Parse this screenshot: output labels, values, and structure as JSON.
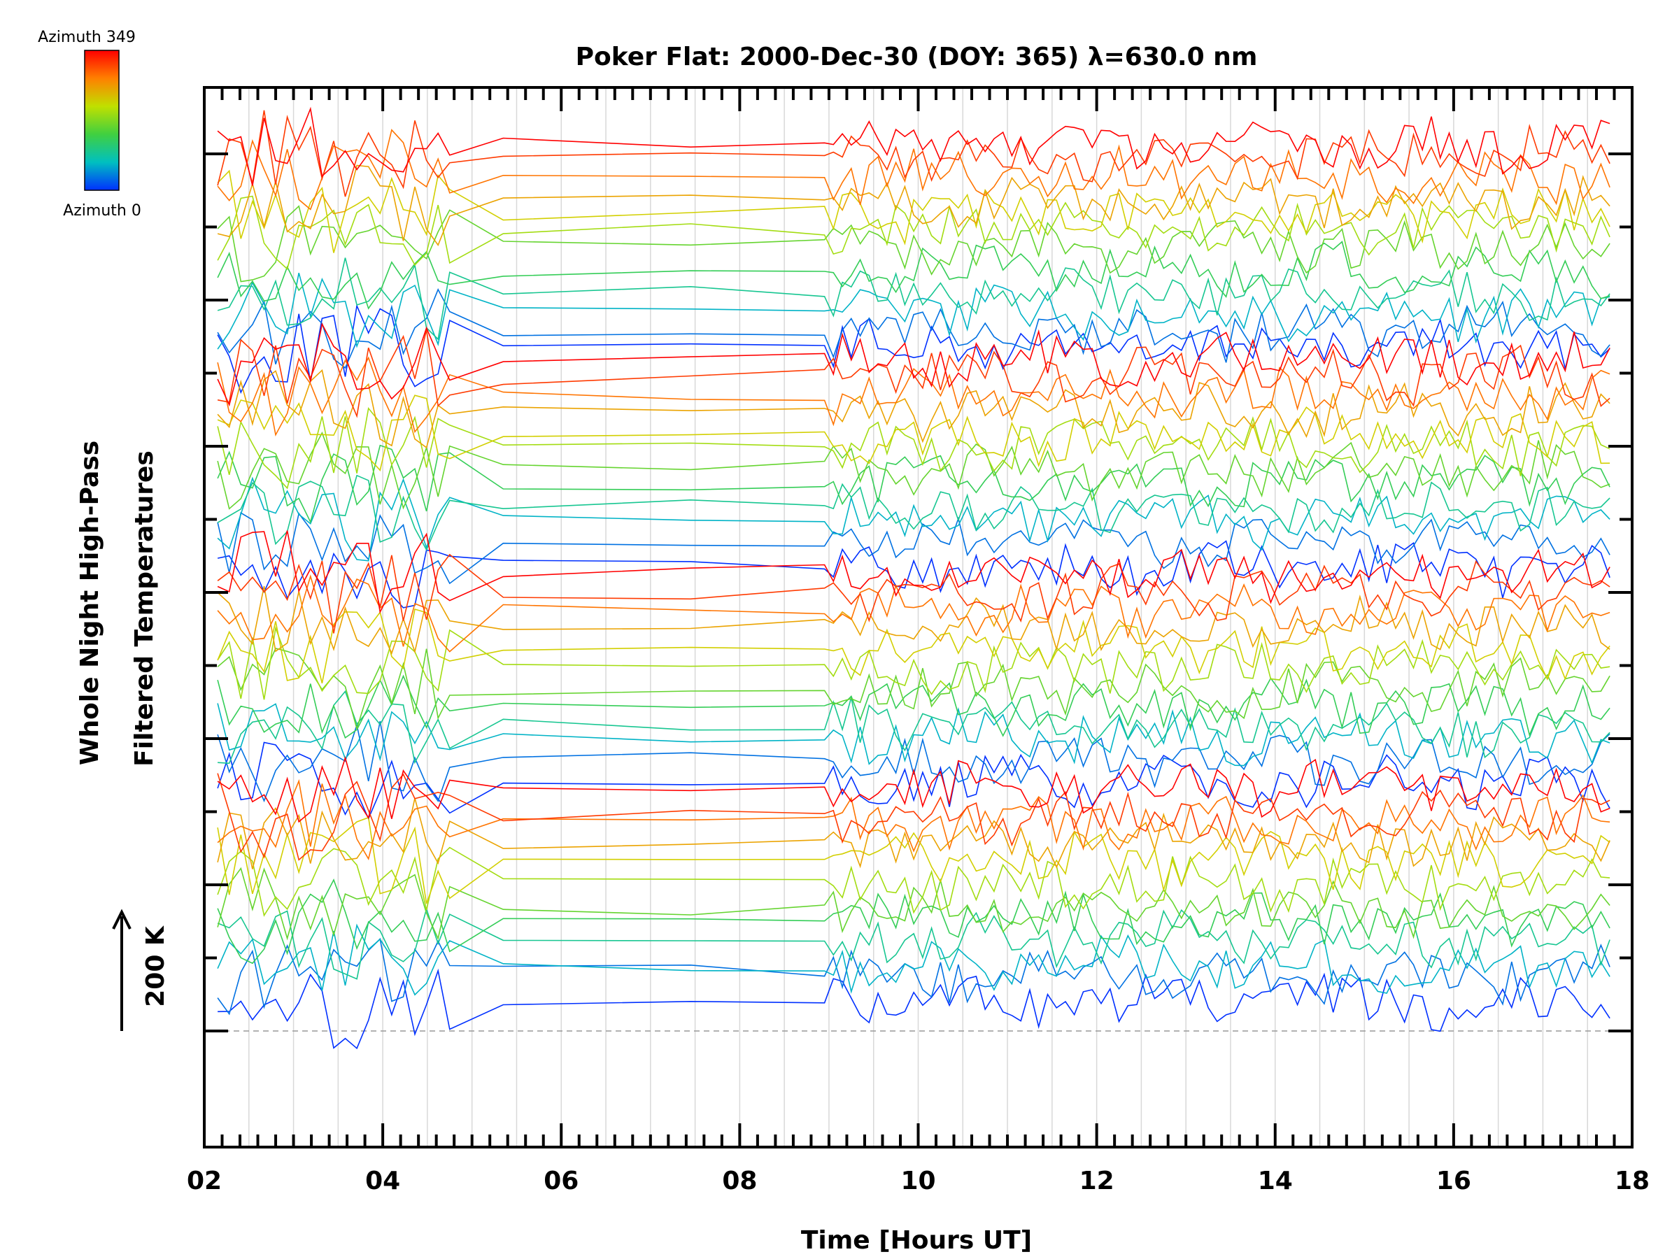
{
  "chart_data": {
    "type": "line",
    "title": "Poker Flat: 2000-Dec-30 (DOY: 365) λ=630.0 nm",
    "xlabel": "Time [Hours UT]",
    "ylabel_line1": "Whole Night High-Pass",
    "ylabel_line2": "Filtered Temperatures",
    "scale_bar_label": "200 K",
    "xlim": [
      2,
      18
    ],
    "x_tick_labels": [
      "02",
      "04",
      "06",
      "08",
      "10",
      "12",
      "14",
      "16",
      "18"
    ],
    "colorbar": {
      "top_label": "Azimuth 349",
      "bottom_label": "Azimuth 0",
      "colors": [
        "#ff0000",
        "#ff8000",
        "#e0e000",
        "#40d040",
        "#00c0c0",
        "#0030ff"
      ]
    },
    "num_traces": 48,
    "azimuth_range": [
      0,
      349
    ],
    "baseline_dashed": true,
    "grid": "vertical-minor"
  }
}
